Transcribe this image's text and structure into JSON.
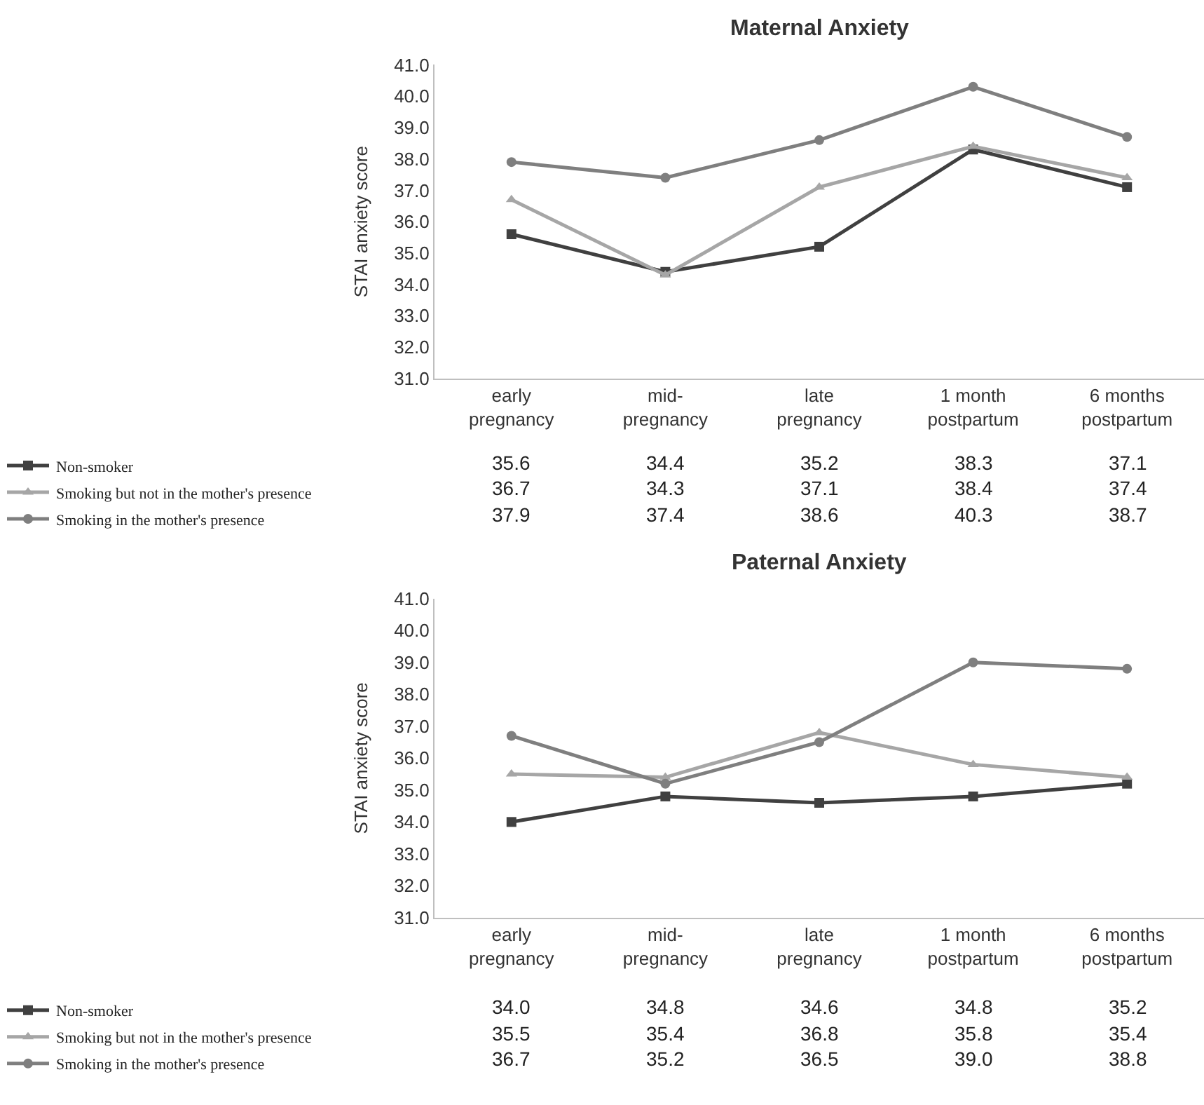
{
  "chart_data": [
    {
      "type": "line",
      "title": "Maternal Anxiety",
      "ylabel": "STAI anxiety score",
      "categories": [
        "early\npregnancy",
        "mid-\npregnancy",
        "late\npregnancy",
        "1 month\npostpartum",
        "6 months\npostpartum"
      ],
      "series": [
        {
          "name": "Non-smoker",
          "color": "#404040",
          "marker": "square",
          "values": [
            35.6,
            34.4,
            35.2,
            38.3,
            37.1
          ],
          "value_labels": [
            "35.6",
            "34.4",
            "35.2",
            "38.3",
            "37.1"
          ]
        },
        {
          "name": "Smoking but not in the mother's presence",
          "color": "#a6a6a6",
          "marker": "triangle",
          "values": [
            36.7,
            34.3,
            37.1,
            38.4,
            37.4
          ],
          "value_labels": [
            "36.7",
            "34.3",
            "37.1",
            "38.4",
            "37.4"
          ]
        },
        {
          "name": "Smoking in the mother's presence",
          "color": "#7f7f7f",
          "marker": "circle",
          "values": [
            37.9,
            37.4,
            38.6,
            40.3,
            38.7
          ],
          "value_labels": [
            "37.9",
            "37.4",
            "38.6",
            "40.3",
            "38.7"
          ]
        }
      ],
      "ylim": [
        31,
        41
      ],
      "yticks": [
        {
          "value": 31,
          "label": "31.0"
        },
        {
          "value": 32,
          "label": "32.0"
        },
        {
          "value": 33,
          "label": "33.0"
        },
        {
          "value": 34,
          "label": "34.0"
        },
        {
          "value": 35,
          "label": "35.0"
        },
        {
          "value": 36,
          "label": "36.0"
        },
        {
          "value": 37,
          "label": "37.0"
        },
        {
          "value": 38,
          "label": "38.0"
        },
        {
          "value": 39,
          "label": "39.0"
        },
        {
          "value": 40,
          "label": "40.0"
        },
        {
          "value": 41,
          "label": "41.0"
        }
      ],
      "legend": "bottom left"
    },
    {
      "type": "line",
      "title": "Paternal Anxiety",
      "ylabel": "STAI anxiety score",
      "categories": [
        "early\npregnancy",
        "mid-\npregnancy",
        "late\npregnancy",
        "1 month\npostpartum",
        "6 months\npostpartum"
      ],
      "series": [
        {
          "name": "Non-smoker",
          "color": "#404040",
          "marker": "square",
          "values": [
            34.0,
            34.8,
            34.6,
            34.8,
            35.2
          ],
          "value_labels": [
            "34.0",
            "34.8",
            "34.6",
            "34.8",
            "35.2"
          ]
        },
        {
          "name": "Smoking but not in the mother's presence",
          "color": "#a6a6a6",
          "marker": "triangle",
          "values": [
            35.5,
            35.4,
            36.8,
            35.8,
            35.4
          ],
          "value_labels": [
            "35.5",
            "35.4",
            "36.8",
            "35.8",
            "35.4"
          ]
        },
        {
          "name": "Smoking in the mother's presence",
          "color": "#7f7f7f",
          "marker": "circle",
          "values": [
            36.7,
            35.2,
            36.5,
            39.0,
            38.8
          ],
          "value_labels": [
            "36.7",
            "35.2",
            "36.5",
            "39.0",
            "38.8"
          ]
        }
      ],
      "ylim": [
        31,
        41
      ],
      "yticks": [
        {
          "value": 31,
          "label": "31.0"
        },
        {
          "value": 32,
          "label": "32.0"
        },
        {
          "value": 33,
          "label": "33.0"
        },
        {
          "value": 34,
          "label": "34.0"
        },
        {
          "value": 35,
          "label": "35.0"
        },
        {
          "value": 36,
          "label": "36.0"
        },
        {
          "value": 37,
          "label": "37.0"
        },
        {
          "value": 38,
          "label": "38.0"
        },
        {
          "value": 39,
          "label": "39.0"
        },
        {
          "value": 40,
          "label": "40.0"
        },
        {
          "value": 41,
          "label": "41.0"
        }
      ],
      "legend": "bottom left"
    }
  ]
}
